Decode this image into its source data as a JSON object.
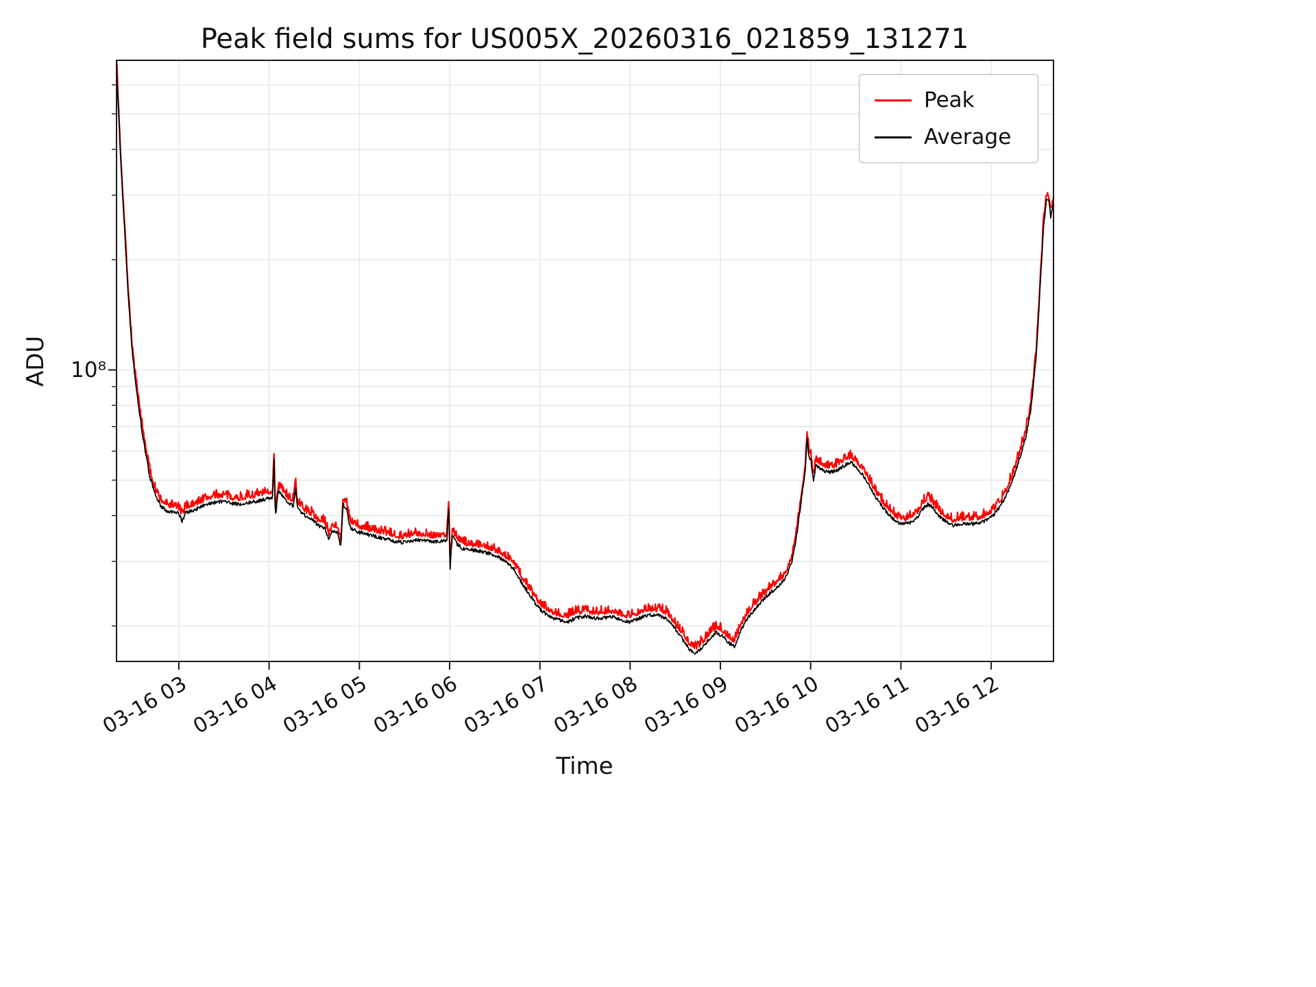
{
  "chart_data": {
    "type": "line",
    "title": "Peak field sums for US005X_20260316_021859_131271",
    "xlabel": "Time",
    "ylabel": "ADU",
    "legend": {
      "position": "upper right"
    },
    "grid": {
      "show": true,
      "color": "#e3e3e3"
    },
    "x_axis": {
      "min": 2.31,
      "max": 12.69,
      "unit": "hours (date 03-16)",
      "ticks": [
        {
          "value": 3,
          "label": "03-16 03"
        },
        {
          "value": 4,
          "label": "03-16 04"
        },
        {
          "value": 5,
          "label": "03-16 05"
        },
        {
          "value": 6,
          "label": "03-16 06"
        },
        {
          "value": 7,
          "label": "03-16 07"
        },
        {
          "value": 8,
          "label": "03-16 08"
        },
        {
          "value": 9,
          "label": "03-16 09"
        },
        {
          "value": 10,
          "label": "03-16 10"
        },
        {
          "value": 11,
          "label": "03-16 11"
        },
        {
          "value": 12,
          "label": "03-16 12"
        }
      ]
    },
    "y_axis": {
      "scale": "log",
      "min": 16000000.0,
      "max": 700000000.0,
      "major_ticks": [
        {
          "value": 100000000.0,
          "label": "10⁸"
        }
      ],
      "minor_tick_values": [
        20000000.0,
        30000000.0,
        40000000.0,
        50000000.0,
        60000000.0,
        70000000.0,
        80000000.0,
        90000000.0,
        200000000.0,
        300000000.0,
        400000000.0,
        500000000.0,
        600000000.0
      ]
    },
    "anchors_time_hours": [
      2.31,
      2.33,
      2.36,
      2.4,
      2.44,
      2.48,
      2.52,
      2.56,
      2.6,
      2.64,
      2.68,
      2.74,
      2.8,
      2.88,
      2.95,
      3.0,
      3.04,
      3.07,
      3.15,
      3.22,
      3.3,
      3.4,
      3.5,
      3.58,
      3.66,
      3.74,
      3.82,
      3.9,
      3.98,
      4.04,
      4.055,
      4.07,
      4.1,
      4.15,
      4.2,
      4.27,
      4.295,
      4.315,
      4.4,
      4.48,
      4.55,
      4.62,
      4.66,
      4.7,
      4.76,
      4.795,
      4.82,
      4.86,
      4.9,
      4.95,
      5.0,
      5.1,
      5.2,
      5.3,
      5.4,
      5.5,
      5.6,
      5.7,
      5.8,
      5.9,
      5.97,
      5.99,
      6.005,
      6.03,
      6.08,
      6.15,
      6.25,
      6.35,
      6.45,
      6.55,
      6.65,
      6.72,
      6.8,
      6.88,
      6.95,
      7.02,
      7.1,
      7.2,
      7.3,
      7.4,
      7.5,
      7.6,
      7.7,
      7.8,
      7.9,
      8.0,
      8.1,
      8.2,
      8.3,
      8.4,
      8.5,
      8.58,
      8.66,
      8.72,
      8.8,
      8.88,
      8.95,
      9.02,
      9.1,
      9.16,
      9.22,
      9.3,
      9.4,
      9.5,
      9.6,
      9.68,
      9.74,
      9.8,
      9.85,
      9.9,
      9.94,
      9.96,
      9.98,
      10.0,
      10.03,
      10.06,
      10.12,
      10.2,
      10.28,
      10.36,
      10.44,
      10.5,
      10.58,
      10.65,
      10.72,
      10.8,
      10.88,
      10.95,
      11.02,
      11.1,
      11.18,
      11.25,
      11.3,
      11.35,
      11.42,
      11.5,
      11.58,
      11.65,
      11.72,
      11.8,
      11.88,
      11.95,
      12.02,
      12.1,
      12.18,
      12.26,
      12.32,
      12.38,
      12.44,
      12.5,
      12.54,
      12.58,
      12.61,
      12.64,
      12.66,
      12.69
    ],
    "anchors_average_adu": [
      680000000.0,
      520000000.0,
      360000000.0,
      240000000.0,
      160000000.0,
      115000000.0,
      92000000.0,
      78000000.0,
      66000000.0,
      58000000.0,
      51000000.0,
      45500000.0,
      42500000.0,
      41000000.0,
      41000000.0,
      40500000.0,
      38500000.0,
      40800000.0,
      41200000.0,
      42000000.0,
      43000000.0,
      43500000.0,
      43800000.0,
      43200000.0,
      43000000.0,
      43300000.0,
      43600000.0,
      44000000.0,
      44500000.0,
      45000000.0,
      59000000.0,
      39500000.0,
      46500000.0,
      45500000.0,
      43500000.0,
      42500000.0,
      48000000.0,
      41800000.0,
      40000000.0,
      39000000.0,
      37500000.0,
      37000000.0,
      34500000.0,
      36500000.0,
      36000000.0,
      33000000.0,
      43000000.0,
      41500000.0,
      37000000.0,
      36500000.0,
      36000000.0,
      35500000.0,
      35000000.0,
      34500000.0,
      34000000.0,
      33800000.0,
      34200000.0,
      34400000.0,
      34000000.0,
      34000000.0,
      34200000.0,
      43000000.0,
      28500000.0,
      35500000.0,
      33500000.0,
      32500000.0,
      32200000.0,
      32000000.0,
      31500000.0,
      30800000.0,
      29500000.0,
      28500000.0,
      26200000.0,
      24500000.0,
      23000000.0,
      22000000.0,
      21300000.0,
      20800000.0,
      20500000.0,
      21000000.0,
      21300000.0,
      21000000.0,
      21000000.0,
      21200000.0,
      20800000.0,
      20500000.0,
      21000000.0,
      21400000.0,
      21400000.0,
      21000000.0,
      19700000.0,
      18400000.0,
      17200000.0,
      16800000.0,
      17400000.0,
      18500000.0,
      19200000.0,
      18800000.0,
      17900000.0,
      17600000.0,
      19300000.0,
      21000000.0,
      22500000.0,
      24000000.0,
      25200000.0,
      26200000.0,
      27500000.0,
      30500000.0,
      36000000.0,
      45000000.0,
      53000000.0,
      65000000.0,
      58000000.0,
      57000000.0,
      49500000.0,
      55000000.0,
      53500000.0,
      52500000.0,
      53000000.0,
      54500000.0,
      56000000.0,
      54500000.0,
      51500000.0,
      48500000.0,
      45000000.0,
      42000000.0,
      40000000.0,
      38500000.0,
      38000000.0,
      38200000.0,
      39500000.0,
      42000000.0,
      43000000.0,
      42200000.0,
      40000000.0,
      38500000.0,
      37500000.0,
      37800000.0,
      38000000.0,
      38000000.0,
      38200000.0,
      39000000.0,
      40000000.0,
      42500000.0,
      46000000.0,
      52000000.0,
      58000000.0,
      65000000.0,
      78000000.0,
      110000000.0,
      165000000.0,
      245000000.0,
      290000000.0,
      288000000.0,
      262000000.0,
      285000000.0
    ],
    "series": [
      {
        "name": "Peak",
        "color": "#ff0000",
        "scale": 1.025,
        "noise_up": 0.055,
        "noise_sym": 0.01,
        "seed": 7,
        "width": 2.2
      },
      {
        "name": "Average",
        "color": "#000000",
        "scale": 1.0,
        "noise_up": 0.0,
        "noise_sym": 0.022,
        "seed": 13,
        "width": 1.7
      }
    ]
  }
}
